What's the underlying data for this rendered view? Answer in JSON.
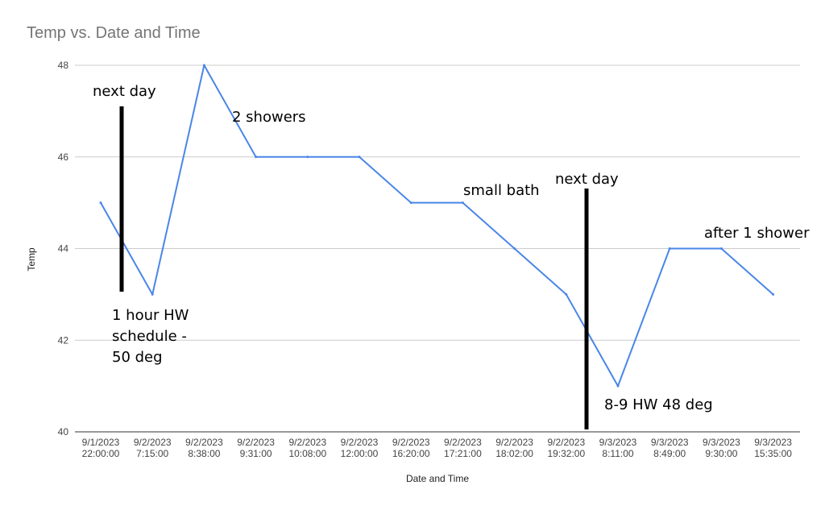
{
  "chart_data": {
    "type": "line",
    "title": "Temp vs. Date and Time",
    "xlabel": "Date and Time",
    "ylabel": "Temp",
    "ylim": [
      40,
      48
    ],
    "yticks": [
      40,
      42,
      44,
      46,
      48
    ],
    "grid": true,
    "categories": [
      [
        "9/1/2023",
        "22:00:00"
      ],
      [
        "9/2/2023",
        "7:15:00"
      ],
      [
        "9/2/2023",
        "8:38:00"
      ],
      [
        "9/2/2023",
        "9:31:00"
      ],
      [
        "9/2/2023",
        "10:08:00"
      ],
      [
        "9/2/2023",
        "12:00:00"
      ],
      [
        "9/2/2023",
        "16:20:00"
      ],
      [
        "9/2/2023",
        "17:21:00"
      ],
      [
        "9/2/2023",
        "18:02:00"
      ],
      [
        "9/2/2023",
        "19:32:00"
      ],
      [
        "9/3/2023",
        "8:11:00"
      ],
      [
        "9/3/2023",
        "8:49:00"
      ],
      [
        "9/3/2023",
        "9:30:00"
      ],
      [
        "9/3/2023",
        "15:35:00"
      ]
    ],
    "series": [
      {
        "color": "#4a86e8",
        "values": [
          45,
          43,
          48,
          46,
          46,
          46,
          45,
          45,
          44,
          43,
          41,
          44,
          44,
          43
        ]
      }
    ],
    "annotations": [
      {
        "lines": [
          "next day"
        ],
        "color": "#000000"
      },
      {
        "lines": [
          "2 showers"
        ],
        "color": "#000000"
      },
      {
        "lines": [
          "small bath"
        ],
        "color": "#000000"
      },
      {
        "lines": [
          "next day"
        ],
        "color": "#000000"
      },
      {
        "lines": [
          "after 1 shower"
        ],
        "color": "#000000"
      },
      {
        "lines": [
          "1 hour HW",
          "schedule -",
          "50 deg"
        ],
        "color": "#000000"
      },
      {
        "lines": [
          "8-9 HW 48 deg"
        ],
        "color": "#000000"
      }
    ]
  }
}
